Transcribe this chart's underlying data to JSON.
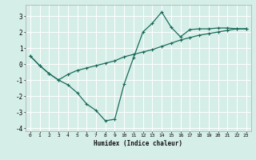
{
  "xlabel": "Humidex (Indice chaleur)",
  "bg_color": "#d6eee8",
  "grid_color": "#ffffff",
  "line_color": "#1a6b5a",
  "xlim": [
    -0.5,
    23.5
  ],
  "ylim": [
    -4.2,
    3.7
  ],
  "yticks": [
    -4,
    -3,
    -2,
    -1,
    0,
    1,
    2,
    3
  ],
  "xticks": [
    0,
    1,
    2,
    3,
    4,
    5,
    6,
    7,
    8,
    9,
    10,
    11,
    12,
    13,
    14,
    15,
    16,
    17,
    18,
    19,
    20,
    21,
    22,
    23
  ],
  "line1_x": [
    0,
    1,
    2,
    3,
    4,
    5,
    6,
    7,
    8,
    9,
    10,
    11,
    12,
    13,
    14,
    15,
    16,
    17,
    18,
    19,
    20,
    21,
    22,
    23
  ],
  "line1_y": [
    0.5,
    -0.1,
    -0.6,
    -1.0,
    -1.3,
    -1.8,
    -2.5,
    -2.9,
    -3.55,
    -3.45,
    -1.25,
    0.4,
    2.0,
    2.55,
    3.25,
    2.3,
    1.7,
    2.15,
    2.2,
    2.2,
    2.25,
    2.25,
    2.2,
    2.2
  ],
  "line2_x": [
    0,
    1,
    2,
    3,
    4,
    5,
    6,
    7,
    8,
    9,
    10,
    11,
    12,
    13,
    14,
    15,
    16,
    17,
    18,
    19,
    20,
    21,
    22,
    23
  ],
  "line2_y": [
    0.5,
    -0.1,
    -0.6,
    -1.0,
    -0.65,
    -0.4,
    -0.25,
    -0.1,
    0.05,
    0.2,
    0.45,
    0.6,
    0.75,
    0.9,
    1.1,
    1.3,
    1.5,
    1.65,
    1.8,
    1.9,
    2.0,
    2.1,
    2.2,
    2.2
  ]
}
